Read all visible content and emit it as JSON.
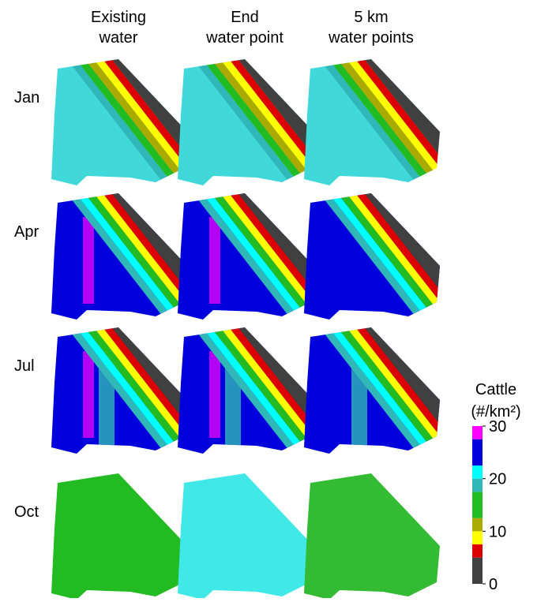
{
  "column_titles": [
    [
      "Existing",
      "water"
    ],
    [
      "End",
      "water point"
    ],
    [
      "5 km",
      "water points"
    ]
  ],
  "row_labels": [
    "Jan",
    "Apr",
    "Jul",
    "Oct"
  ],
  "legend": {
    "title": "Cattle",
    "unit": "(#/km²)",
    "ticks": [
      0,
      10,
      20,
      30
    ],
    "lim": [
      0,
      30
    ],
    "colorbar": [
      {
        "from": 0,
        "to": 5,
        "color": "#404040"
      },
      {
        "from": 5,
        "to": 7.5,
        "color": "#dd0000"
      },
      {
        "from": 7.5,
        "to": 10,
        "color": "#ffff00"
      },
      {
        "from": 10,
        "to": 12.5,
        "color": "#aaaa00"
      },
      {
        "from": 12.5,
        "to": 17.5,
        "color": "#22bb22"
      },
      {
        "from": 17.5,
        "to": 20,
        "color": "#30b8b8"
      },
      {
        "from": 20,
        "to": 22.5,
        "color": "#00ffff"
      },
      {
        "from": 22.5,
        "to": 27.5,
        "color": "#0000dd"
      },
      {
        "from": 27.5,
        "to": 30,
        "color": "#ff00ff"
      }
    ]
  }
}
